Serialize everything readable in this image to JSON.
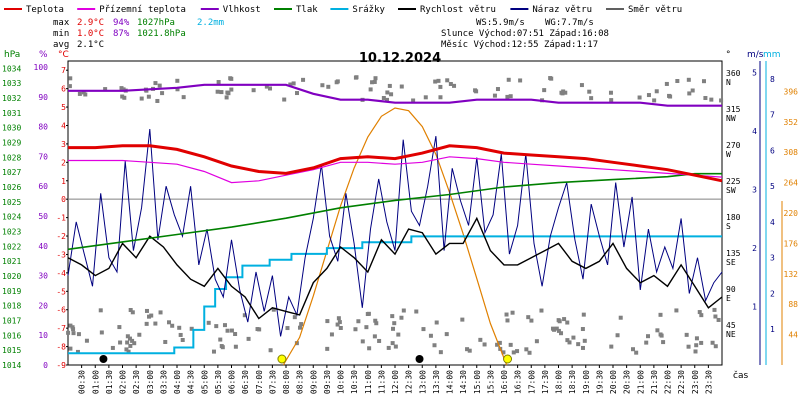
{
  "chart_data": {
    "type": "line",
    "title": "10.12.2024",
    "legend": [
      {
        "name": "Teplota",
        "color": "#e00000"
      },
      {
        "name": "Přízemní teplota",
        "color": "#e000e0"
      },
      {
        "name": "Vlhkost",
        "color": "#8000c0"
      },
      {
        "name": "Tlak",
        "color": "#008000"
      },
      {
        "name": "Srážky",
        "color": "#00b0e0"
      },
      {
        "name": "Rychlost větru",
        "color": "#000000"
      },
      {
        "name": "Náraz větru",
        "color": "#000080"
      },
      {
        "name": "Směr větru",
        "color": "#606060"
      }
    ],
    "stats": {
      "max_label": "max",
      "max_temp": "2.9°C",
      "max_hum": "94%",
      "max_press": "1027hPa",
      "max_rain": "2.2mm",
      "min_label": "min",
      "min_temp": "1.0°C",
      "min_hum": "87%",
      "min_press": "1021.8hPa",
      "avg_label": "avg",
      "avg_temp": "2.1°C"
    },
    "wind_info": {
      "ws": "WS:5.9m/s",
      "wg": "WG:7.7m/s",
      "sun": "Slunce Východ:07:51  Západ:16:08",
      "moon": "Měsíc  Východ:12:55  Západ:1:17"
    },
    "axes": {
      "hpa_title": "hPa",
      "pct_title": "%",
      "c_title": "°C",
      "deg_title": "°",
      "ms_title": "m/s",
      "mm_title": "mm",
      "hpa_ticks": [
        "1034",
        "1033",
        "1032",
        "1031",
        "1030",
        "1029",
        "1028",
        "1027",
        "1026",
        "1025",
        "1024",
        "1023",
        "1022",
        "1021",
        "1020",
        "1019",
        "1018",
        "1017",
        "1016",
        "1015",
        "1014"
      ],
      "pct_ticks": [
        "100",
        "90",
        "80",
        "70",
        "60",
        "50",
        "40",
        "30",
        "20",
        "10",
        "0"
      ],
      "temp_ticks": [
        "7",
        "6",
        "5",
        "4",
        "3",
        "2",
        "1",
        "0",
        "-1",
        "-2",
        "-3",
        "-4",
        "-5",
        "-6",
        "-7",
        "-8",
        "-9"
      ],
      "dir_ticks": [
        {
          "deg": "360",
          "dir": "N"
        },
        {
          "deg": "315",
          "dir": "NW"
        },
        {
          "deg": "270",
          "dir": "W"
        },
        {
          "deg": "225",
          "dir": "SW"
        },
        {
          "deg": "180",
          "dir": "S"
        },
        {
          "deg": "135",
          "dir": "SE"
        },
        {
          "deg": "90",
          "dir": "E"
        },
        {
          "deg": "45",
          "dir": "NE"
        }
      ],
      "ms_ticks": [
        "5",
        "4",
        "3",
        "2",
        "1"
      ],
      "wind_ticks": [
        "8",
        "7",
        "6",
        "5",
        "4",
        "3",
        "2",
        "1"
      ],
      "rad_ticks": [
        "396",
        "352",
        "308",
        "264",
        "220",
        "176",
        "132",
        "88",
        "44"
      ],
      "x_ticks": [
        "00:30",
        "01:00",
        "01:30",
        "02:00",
        "02:30",
        "03:00",
        "03:30",
        "04:00",
        "04:30",
        "05:00",
        "05:30",
        "06:00",
        "06:30",
        "07:00",
        "07:30",
        "08:00",
        "08:30",
        "09:00",
        "09:30",
        "10:00",
        "10:30",
        "11:00",
        "11:30",
        "12:00",
        "12:30",
        "13:00",
        "13:30",
        "14:00",
        "14:30",
        "15:00",
        "15:30",
        "16:00",
        "16:30",
        "17:00",
        "17:30",
        "18:00",
        "18:30",
        "19:00",
        "19:30",
        "20:00",
        "20:30",
        "21:00",
        "21:30",
        "22:00",
        "22:30",
        "23:00",
        "23:30"
      ],
      "xlabel": "čas",
      "temp_range": [
        -9,
        7.5
      ],
      "hum_range": [
        0,
        102
      ],
      "press_range": [
        1014,
        1034.5
      ],
      "dir_range": [
        0,
        380
      ],
      "wind_range": [
        0,
        8.5
      ],
      "rain_range": [
        0,
        5.2
      ]
    },
    "series": {
      "temperature": {
        "color": "#e00000",
        "t": [
          0,
          1,
          2,
          3,
          4,
          5,
          6,
          7,
          8,
          9,
          10,
          11,
          12,
          13,
          14,
          15,
          16,
          17,
          18,
          19,
          20,
          21,
          22,
          23,
          24
        ],
        "v": [
          2.8,
          2.8,
          2.9,
          2.9,
          2.7,
          2.3,
          1.8,
          1.5,
          1.4,
          1.7,
          2.2,
          2.3,
          2.2,
          2.5,
          2.9,
          2.8,
          2.5,
          2.4,
          2.3,
          2.2,
          2.0,
          1.8,
          1.6,
          1.3,
          1.0
        ]
      },
      "ground_temp": {
        "color": "#e000e0",
        "t": [
          0,
          1,
          2,
          3,
          4,
          5,
          6,
          7,
          8,
          9,
          10,
          11,
          12,
          13,
          14,
          15,
          16,
          17,
          18,
          19,
          20,
          21,
          22,
          23,
          24
        ],
        "v": [
          2.1,
          2.1,
          2.1,
          2.0,
          1.9,
          1.5,
          0.9,
          1.0,
          1.3,
          1.6,
          2.0,
          2.0,
          1.9,
          2.0,
          2.3,
          2.2,
          2.0,
          1.9,
          1.8,
          1.7,
          1.6,
          1.5,
          1.4,
          1.3,
          1.2
        ]
      },
      "humidity": {
        "color": "#8000c0",
        "t": [
          0,
          2,
          4,
          5,
          6,
          8,
          9,
          10,
          11,
          12,
          13,
          14,
          15,
          16,
          17,
          18,
          19,
          20,
          21,
          22,
          23,
          24
        ],
        "v": [
          92,
          92,
          93,
          94,
          94,
          94,
          91,
          89,
          89,
          88,
          88,
          88,
          89,
          89,
          89,
          88,
          88,
          88,
          88,
          87,
          87,
          87
        ]
      },
      "pressure": {
        "color": "#008000",
        "t": [
          0,
          2,
          4,
          6,
          8,
          10,
          12,
          14,
          16,
          18,
          20,
          22,
          23,
          24
        ],
        "v": [
          1021.8,
          1022.3,
          1022.8,
          1023.3,
          1023.9,
          1024.6,
          1025.1,
          1025.5,
          1026.0,
          1026.3,
          1026.5,
          1026.7,
          1026.9,
          1026.9
        ]
      },
      "rain": {
        "color": "#00b0e0",
        "t": [
          0,
          3.9,
          4.6,
          5.0,
          5.4,
          5.8,
          6.4,
          7.4,
          8.2,
          9.5,
          10.8,
          12.6,
          15.5,
          24
        ],
        "v": [
          0.2,
          0.3,
          0.6,
          1.0,
          1.3,
          1.5,
          1.7,
          1.8,
          1.9,
          2.0,
          2.1,
          2.2,
          2.2,
          2.2
        ]
      },
      "wind_speed": {
        "color": "#000000",
        "t": [
          0,
          0.5,
          1,
          1.5,
          2,
          2.5,
          3,
          3.5,
          4,
          4.5,
          5,
          5.5,
          6,
          6.5,
          7,
          7.5,
          8,
          8.5,
          9,
          9.5,
          10,
          10.5,
          11,
          11.5,
          12,
          12.5,
          13,
          13.5,
          14,
          14.5,
          15,
          15.5,
          16,
          16.5,
          17,
          17.5,
          18,
          18.5,
          19,
          19.5,
          20,
          20.5,
          21,
          21.5,
          22,
          22.5,
          23,
          23.5,
          24
        ],
        "v": [
          3.0,
          2.8,
          2.5,
          2.7,
          3.4,
          3.0,
          3.6,
          3.3,
          2.8,
          2.4,
          2.2,
          2.7,
          2.2,
          1.9,
          1.3,
          1.6,
          1.5,
          1.4,
          2.3,
          2.7,
          3.3,
          3.0,
          2.6,
          3.5,
          3.1,
          3.8,
          3.7,
          3.1,
          3.4,
          3.4,
          4.1,
          3.2,
          2.8,
          2.8,
          3.0,
          3.2,
          3.4,
          2.9,
          2.7,
          2.9,
          3.4,
          2.7,
          2.3,
          2.5,
          2.2,
          2.8,
          2.2,
          1.6,
          1.9
        ]
      },
      "wind_gust": {
        "color": "#000080",
        "t": [
          0,
          0.3,
          0.6,
          0.9,
          1.2,
          1.5,
          1.8,
          2.1,
          2.4,
          2.7,
          3.0,
          3.3,
          3.6,
          3.9,
          4.2,
          4.5,
          4.8,
          5.1,
          5.4,
          5.7,
          6.0,
          6.3,
          6.6,
          6.9,
          7.2,
          7.5,
          7.8,
          8.1,
          8.4,
          8.7,
          9.0,
          9.3,
          9.6,
          9.9,
          10.2,
          10.5,
          10.8,
          11.1,
          11.4,
          11.7,
          12.0,
          12.3,
          12.6,
          12.9,
          13.2,
          13.5,
          13.8,
          14.1,
          14.4,
          14.7,
          15.0,
          15.3,
          15.6,
          15.9,
          16.2,
          16.5,
          16.8,
          17.1,
          17.4,
          17.7,
          18.0,
          18.3,
          18.6,
          18.9,
          19.2,
          19.5,
          19.8,
          20.1,
          20.4,
          20.7,
          21.0,
          21.3,
          21.6,
          21.9,
          22.2,
          22.5,
          22.8,
          23.1,
          23.4,
          23.7,
          24
        ],
        "v": [
          2.5,
          4.0,
          3.1,
          2.2,
          4.8,
          3.0,
          2.6,
          5.7,
          3.2,
          4.4,
          6.6,
          3.5,
          5.0,
          4.2,
          3.6,
          5.0,
          2.8,
          3.8,
          2.4,
          1.9,
          3.5,
          2.1,
          1.2,
          2.6,
          1.5,
          2.5,
          0.8,
          1.9,
          1.4,
          3.0,
          4.1,
          5.6,
          3.6,
          2.9,
          4.8,
          3.4,
          1.6,
          3.8,
          5.2,
          4.0,
          3.2,
          6.3,
          4.3,
          3.9,
          5.0,
          6.4,
          3.2,
          5.5,
          4.6,
          3.9,
          5.8,
          3.7,
          4.2,
          5.9,
          3.1,
          3.9,
          5.9,
          3.4,
          2.2,
          3.6,
          4.4,
          5.1,
          3.5,
          2.4,
          4.5,
          3.6,
          2.8,
          5.1,
          3.3,
          4.7,
          2.1,
          3.8,
          2.6,
          3.3,
          2.7,
          4.1,
          2.0,
          3.0,
          1.8,
          2.3,
          2.6
        ]
      },
      "solar": {
        "color": "#e08000",
        "t": [
          7.9,
          8.5,
          9,
          9.5,
          10,
          10.5,
          11,
          11.5,
          12,
          12.5,
          13,
          13.5,
          14,
          14.5,
          15,
          15.5,
          16.1
        ],
        "v": [
          0,
          40,
          100,
          165,
          230,
          285,
          330,
          360,
          372,
          368,
          345,
          305,
          250,
          190,
          125,
          60,
          0
        ]
      }
    },
    "markers": {
      "sunrise": [
        7.85,
        16.13
      ],
      "moon": [
        1.3,
        12.9
      ]
    }
  }
}
